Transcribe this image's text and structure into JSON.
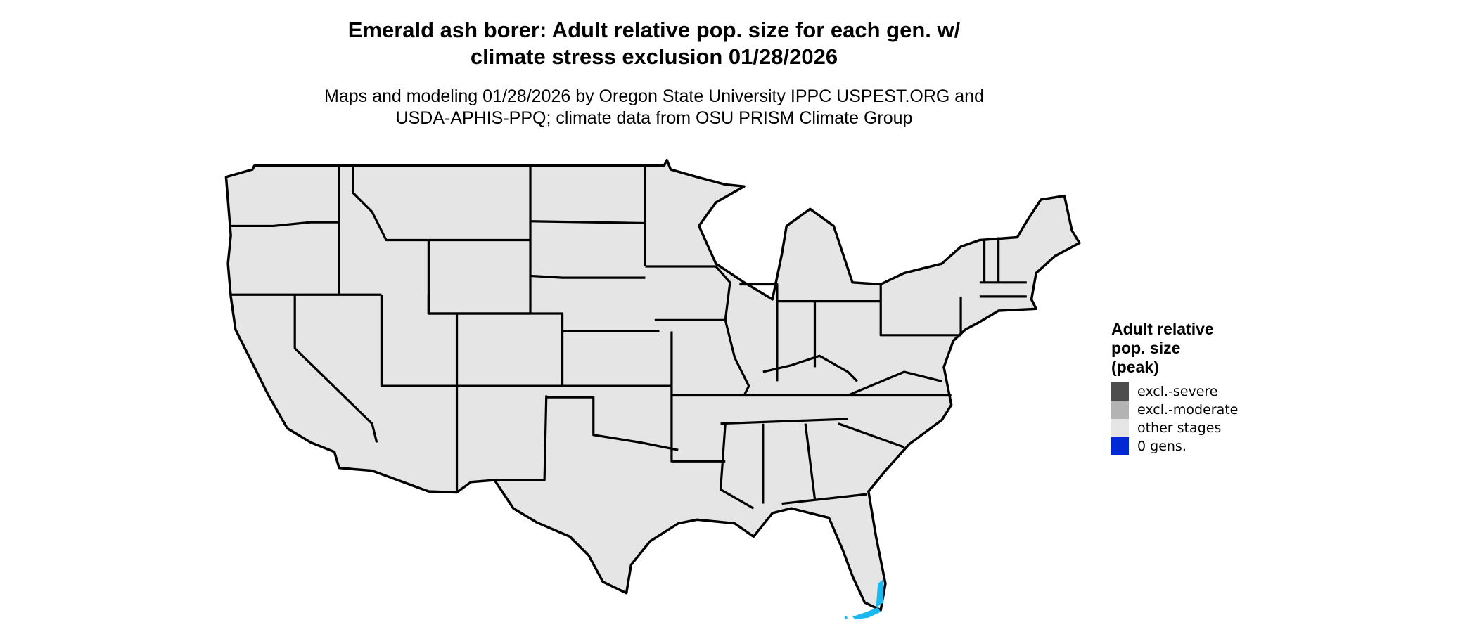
{
  "title_lines": [
    "Emerald ash borer: Adult relative pop. size for each gen. w/",
    "climate stress exclusion 01/28/2026"
  ],
  "subtitle_lines": [
    "Maps and modeling 01/28/2026 by Oregon State University IPPC USPEST.ORG and",
    "USDA-APHIS-PPQ; climate data from OSU PRISM Climate Group"
  ],
  "map": {
    "region": "Contiguous United States with state boundaries",
    "base_fill": "#e5e5e5",
    "border_color": "#000000",
    "highlight_color": "#1ab8ef",
    "highlight_region": "South Florida coast and Florida Keys"
  },
  "legend": {
    "title_lines": [
      "Adult relative",
      "pop. size",
      "(peak)"
    ],
    "items": [
      {
        "label": "excl.-severe",
        "color": "#4d4d4d"
      },
      {
        "label": "excl.-moderate",
        "color": "#b3b3b3"
      },
      {
        "label": "other stages",
        "color": "#e5e5e5"
      },
      {
        "label": "0 gens.",
        "color": "#0029d6"
      }
    ]
  }
}
